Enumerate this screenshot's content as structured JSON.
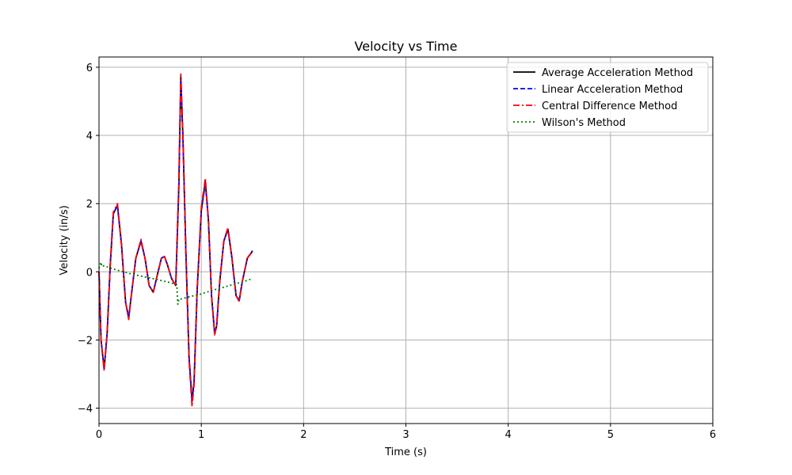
{
  "chart_data": {
    "type": "line",
    "title": "Velocity vs Time",
    "xlabel": "Time (s)",
    "ylabel": "Velocity (in/s)",
    "xlim": [
      0,
      6
    ],
    "ylim": [
      -4.45,
      6.3
    ],
    "xticks": [
      0,
      1,
      2,
      3,
      4,
      5,
      6
    ],
    "yticks": [
      -4,
      -2,
      0,
      2,
      4,
      6
    ],
    "xtick_labels": [
      "0",
      "1",
      "2",
      "3",
      "4",
      "5",
      "6"
    ],
    "ytick_labels": [
      "−4",
      "−2",
      "0",
      "2",
      "4",
      "6"
    ],
    "grid": true,
    "legend_position": "top-right",
    "series": [
      {
        "name": "Average Acceleration Method",
        "color": "#000000",
        "dash": "solid",
        "x": [
          0,
          0.02,
          0.05,
          0.08,
          0.11,
          0.14,
          0.18,
          0.22,
          0.26,
          0.29,
          0.32,
          0.36,
          0.41,
          0.45,
          0.49,
          0.53,
          0.57,
          0.61,
          0.64,
          0.67,
          0.71,
          0.75,
          0.78,
          0.8,
          0.82,
          0.85,
          0.88,
          0.91,
          0.93,
          0.96,
          1.0,
          1.04,
          1.07,
          1.1,
          1.13,
          1.15,
          1.18,
          1.22,
          1.26,
          1.3,
          1.34,
          1.37,
          1.4,
          1.45,
          1.5
        ],
        "values": [
          0,
          -2.0,
          -2.85,
          -1.8,
          0.2,
          1.7,
          1.95,
          0.8,
          -0.9,
          -1.35,
          -0.6,
          0.4,
          0.9,
          0.4,
          -0.4,
          -0.6,
          -0.1,
          0.4,
          0.45,
          0.2,
          -0.2,
          -0.4,
          2.5,
          5.7,
          4.0,
          0.5,
          -2.5,
          -3.8,
          -3.2,
          -0.5,
          1.8,
          2.65,
          1.5,
          -0.7,
          -1.8,
          -1.6,
          -0.3,
          0.9,
          1.25,
          0.4,
          -0.7,
          -0.85,
          -0.3,
          0.4,
          0.6
        ]
      },
      {
        "name": "Linear Acceleration Method",
        "color": "#0000ff",
        "dash": "dashed",
        "x": [
          0,
          0.02,
          0.05,
          0.08,
          0.11,
          0.14,
          0.18,
          0.22,
          0.26,
          0.29,
          0.32,
          0.36,
          0.41,
          0.45,
          0.49,
          0.53,
          0.57,
          0.61,
          0.64,
          0.67,
          0.71,
          0.75,
          0.78,
          0.8,
          0.82,
          0.85,
          0.88,
          0.91,
          0.93,
          0.96,
          1.0,
          1.04,
          1.07,
          1.1,
          1.13,
          1.15,
          1.18,
          1.22,
          1.26,
          1.3,
          1.34,
          1.37,
          1.4,
          1.45,
          1.5
        ],
        "values": [
          0,
          -2.0,
          -2.85,
          -1.8,
          0.2,
          1.7,
          1.95,
          0.8,
          -0.9,
          -1.35,
          -0.6,
          0.4,
          0.9,
          0.4,
          -0.4,
          -0.6,
          -0.1,
          0.4,
          0.45,
          0.2,
          -0.2,
          -0.4,
          2.5,
          5.65,
          4.0,
          0.5,
          -2.5,
          -3.8,
          -3.2,
          -0.5,
          1.8,
          2.6,
          1.5,
          -0.7,
          -1.8,
          -1.6,
          -0.3,
          0.9,
          1.25,
          0.4,
          -0.7,
          -0.85,
          -0.3,
          0.4,
          0.62
        ]
      },
      {
        "name": "Central Difference Method",
        "color": "#ff0000",
        "dash": "dashdot",
        "x": [
          0,
          0.02,
          0.05,
          0.08,
          0.11,
          0.14,
          0.18,
          0.22,
          0.26,
          0.29,
          0.32,
          0.36,
          0.41,
          0.45,
          0.49,
          0.53,
          0.57,
          0.61,
          0.64,
          0.67,
          0.71,
          0.75,
          0.78,
          0.8,
          0.82,
          0.85,
          0.88,
          0.91,
          0.93,
          0.96,
          1.0,
          1.04,
          1.07,
          1.1,
          1.13,
          1.15,
          1.18,
          1.22,
          1.26,
          1.3,
          1.34,
          1.37,
          1.4,
          1.45,
          1.5
        ],
        "values": [
          0,
          -2.0,
          -2.9,
          -1.8,
          0.2,
          1.75,
          2.0,
          0.8,
          -0.9,
          -1.4,
          -0.6,
          0.4,
          0.95,
          0.4,
          -0.4,
          -0.6,
          -0.1,
          0.4,
          0.45,
          0.2,
          -0.2,
          -0.4,
          2.6,
          5.8,
          4.1,
          0.5,
          -2.6,
          -3.95,
          -3.3,
          -0.5,
          1.9,
          2.75,
          1.5,
          -0.7,
          -1.85,
          -1.6,
          -0.3,
          0.9,
          1.3,
          0.4,
          -0.7,
          -0.88,
          -0.3,
          0.4,
          0.6
        ]
      },
      {
        "name": "Wilson's Method",
        "color": "#008000",
        "dash": "dotted",
        "x": [
          0,
          0.01,
          0.02,
          0.03,
          0.05,
          0.1,
          0.2,
          0.3,
          0.4,
          0.5,
          0.6,
          0.7,
          0.76,
          0.77,
          0.78,
          0.8,
          0.9,
          1.0,
          1.1,
          1.2,
          1.3,
          1.4,
          1.5
        ],
        "values": [
          0.1,
          0.2,
          0.28,
          0.15,
          0.18,
          0.12,
          0.03,
          -0.05,
          -0.12,
          -0.18,
          -0.25,
          -0.32,
          -0.38,
          -0.95,
          -0.8,
          -0.8,
          -0.72,
          -0.65,
          -0.55,
          -0.47,
          -0.38,
          -0.3,
          -0.2
        ]
      }
    ]
  }
}
